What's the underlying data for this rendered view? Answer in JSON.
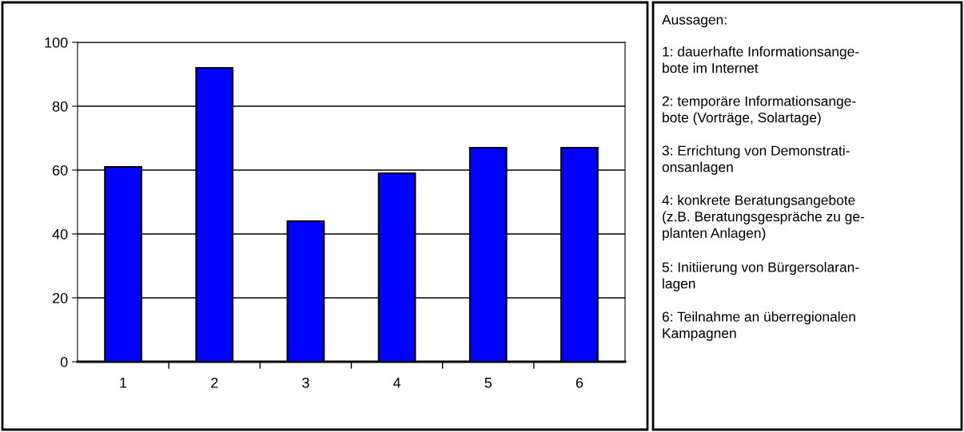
{
  "chart_data": {
    "type": "bar",
    "categories": [
      "1",
      "2",
      "3",
      "4",
      "5",
      "6"
    ],
    "values": [
      61,
      92,
      44,
      59,
      67,
      67
    ],
    "color": "#0000ff",
    "ylim": [
      0,
      100
    ],
    "yticks": [
      0,
      20,
      40,
      60,
      80,
      100
    ],
    "grid": "y",
    "legend": false,
    "annotations": [
      "Aussagen:",
      "1: dauerhafte Informationsange-\nbote im Internet",
      "2: temporäre Informationsange-\nbote (Vorträge, Solartage)",
      "3: Errichtung von Demonstrati-\nonsanlagen",
      "4: konkrete Beratungsangebote\n(z.B. Beratungsgespräche zu ge-\nplanten Anlagen)",
      "5: Initiierung von Bürgersolaran-\nlagen",
      "6: Teilnahme an überregionalen\nKampagnen"
    ]
  }
}
